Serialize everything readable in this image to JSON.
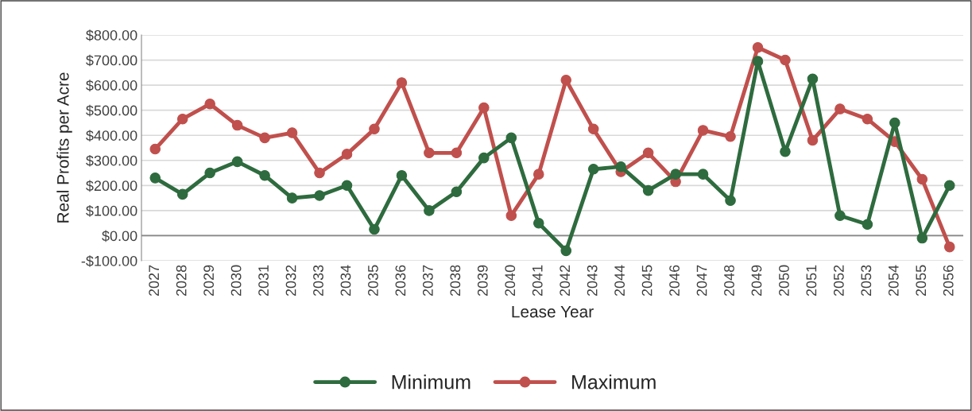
{
  "chart_data": {
    "type": "line",
    "xlabel": "Lease Year",
    "ylabel": "Real Profits per Acre",
    "categories": [
      "2027",
      "2028",
      "2029",
      "2030",
      "2031",
      "2032",
      "2033",
      "2034",
      "2035",
      "2036",
      "2037",
      "2038",
      "2039",
      "2040",
      "2041",
      "2042",
      "2043",
      "2044",
      "2045",
      "2046",
      "2047",
      "2048",
      "2049",
      "2050",
      "2051",
      "2052",
      "2053",
      "2054",
      "2055",
      "2056"
    ],
    "series": [
      {
        "name": "Minimum",
        "color": "#2e6b3e",
        "values": [
          230,
          165,
          250,
          295,
          240,
          150,
          160,
          200,
          25,
          240,
          100,
          175,
          310,
          390,
          50,
          -60,
          265,
          275,
          180,
          245,
          245,
          140,
          695,
          335,
          625,
          80,
          45,
          450,
          -10,
          200
        ]
      },
      {
        "name": "Maximum",
        "color": "#c0504d",
        "values": [
          345,
          465,
          525,
          440,
          390,
          410,
          250,
          325,
          425,
          610,
          330,
          330,
          510,
          80,
          245,
          620,
          425,
          255,
          330,
          215,
          420,
          395,
          750,
          700,
          380,
          505,
          465,
          375,
          225,
          -45
        ]
      }
    ],
    "ylim": [
      -100,
      800
    ],
    "yticks": [
      {
        "value": -100,
        "label": "-$100.00"
      },
      {
        "value": 0,
        "label": "$0.00"
      },
      {
        "value": 100,
        "label": "$100.00"
      },
      {
        "value": 200,
        "label": "$200.00"
      },
      {
        "value": 300,
        "label": "$300.00"
      },
      {
        "value": 400,
        "label": "$400.00"
      },
      {
        "value": 500,
        "label": "$500.00"
      },
      {
        "value": 600,
        "label": "$600.00"
      },
      {
        "value": 700,
        "label": "$700.00"
      },
      {
        "value": 800,
        "label": "$800.00"
      }
    ],
    "grid": "y",
    "legend": "bottom",
    "marker": "circle",
    "line_style": "solid"
  }
}
